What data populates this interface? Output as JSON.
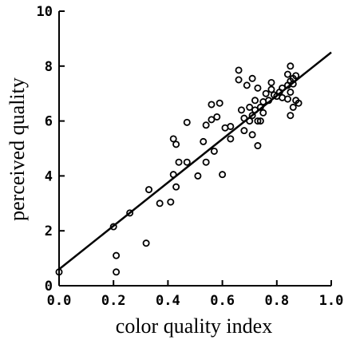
{
  "colors": {
    "background": "#ffffff",
    "ink": "#000000"
  },
  "chart_data": {
    "type": "scatter",
    "title": "",
    "xlabel": "color quality index",
    "ylabel": "perceived quality",
    "xlim": [
      0.0,
      1.0
    ],
    "ylim": [
      0,
      10
    ],
    "x_ticks": [
      "0.0",
      "0.2",
      "0.4",
      "0.6",
      "0.8",
      "1.0"
    ],
    "y_ticks": [
      "0",
      "2",
      "4",
      "6",
      "8",
      "10"
    ],
    "grid": false,
    "legend": "none",
    "marker": "open-circle",
    "fit_line": {
      "type": "linear",
      "points": [
        [
          0.0,
          0.6
        ],
        [
          1.0,
          8.5
        ]
      ]
    },
    "series": [
      {
        "points": [
          [
            0.0,
            0.5
          ],
          [
            0.2,
            2.15
          ],
          [
            0.21,
            1.1
          ],
          [
            0.21,
            0.5
          ],
          [
            0.26,
            2.65
          ],
          [
            0.32,
            1.55
          ],
          [
            0.33,
            3.5
          ],
          [
            0.37,
            3.0
          ],
          [
            0.41,
            3.05
          ],
          [
            0.42,
            4.05
          ],
          [
            0.42,
            5.35
          ],
          [
            0.43,
            5.15
          ],
          [
            0.43,
            3.6
          ],
          [
            0.44,
            4.5
          ],
          [
            0.47,
            4.5
          ],
          [
            0.47,
            5.95
          ],
          [
            0.51,
            4.0
          ],
          [
            0.53,
            5.25
          ],
          [
            0.54,
            4.5
          ],
          [
            0.54,
            5.85
          ],
          [
            0.56,
            6.05
          ],
          [
            0.56,
            6.6
          ],
          [
            0.57,
            4.9
          ],
          [
            0.58,
            6.15
          ],
          [
            0.59,
            6.65
          ],
          [
            0.6,
            4.05
          ],
          [
            0.61,
            5.75
          ],
          [
            0.63,
            5.35
          ],
          [
            0.63,
            5.8
          ],
          [
            0.66,
            7.5
          ],
          [
            0.66,
            7.85
          ],
          [
            0.67,
            6.4
          ],
          [
            0.68,
            5.65
          ],
          [
            0.68,
            6.1
          ],
          [
            0.69,
            7.3
          ],
          [
            0.7,
            6.5
          ],
          [
            0.7,
            6.0
          ],
          [
            0.71,
            6.2
          ],
          [
            0.71,
            7.55
          ],
          [
            0.71,
            5.5
          ],
          [
            0.72,
            6.4
          ],
          [
            0.72,
            6.75
          ],
          [
            0.73,
            6.0
          ],
          [
            0.73,
            7.2
          ],
          [
            0.73,
            5.1
          ],
          [
            0.74,
            6.5
          ],
          [
            0.74,
            6.0
          ],
          [
            0.75,
            6.3
          ],
          [
            0.75,
            6.7
          ],
          [
            0.76,
            7.0
          ],
          [
            0.77,
            6.75
          ],
          [
            0.78,
            7.4
          ],
          [
            0.78,
            7.15
          ],
          [
            0.79,
            6.95
          ],
          [
            0.8,
            6.9
          ],
          [
            0.81,
            7.05
          ],
          [
            0.82,
            7.2
          ],
          [
            0.82,
            6.85
          ],
          [
            0.84,
            7.3
          ],
          [
            0.84,
            7.7
          ],
          [
            0.84,
            6.8
          ],
          [
            0.85,
            7.45
          ],
          [
            0.85,
            7.05
          ],
          [
            0.85,
            8.0
          ],
          [
            0.85,
            6.2
          ],
          [
            0.86,
            7.55
          ],
          [
            0.86,
            7.35
          ],
          [
            0.86,
            6.5
          ],
          [
            0.87,
            7.65
          ],
          [
            0.87,
            6.75
          ],
          [
            0.88,
            6.65
          ]
        ]
      }
    ]
  }
}
